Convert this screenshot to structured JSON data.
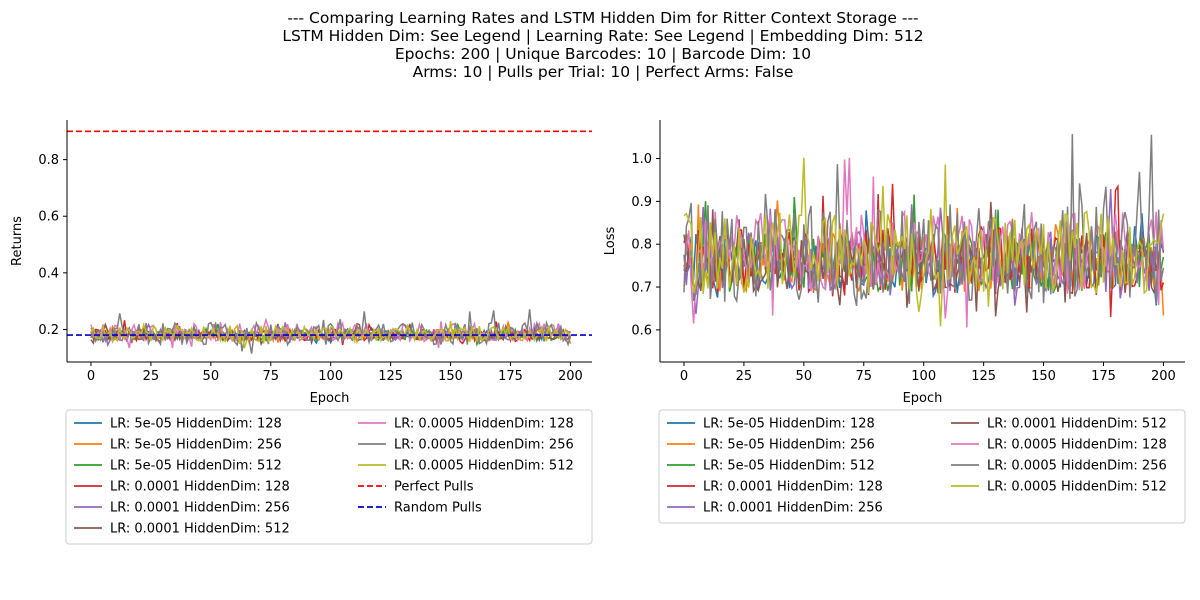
{
  "title_lines": [
    "--- Comparing Learning Rates and LSTM Hidden Dim for Ritter Context Storage ---",
    "LSTM Hidden Dim: See Legend | Learning Rate: See Legend | Embedding Dim: 512",
    "Epochs: 200 | Unique Barcodes: 10 | Barcode Dim: 10",
    "Arms: 10 | Pulls per Trial: 10 | Perfect Arms: False"
  ],
  "colors": {
    "lr5e-05_h128": "#1f77b4",
    "lr5e-05_h256": "#ff7f0e",
    "lr5e-05_h512": "#2ca02c",
    "lr0.0001_h128": "#d62728",
    "lr0.0001_h256": "#9467bd",
    "lr0.0001_h512": "#8c564b",
    "lr0.0005_h128": "#e377c2",
    "lr0.0005_h256": "#7f7f7f",
    "lr0.0005_h512": "#bcbd22",
    "perfect": "#ff0000",
    "random": "#0000cc"
  },
  "chart_data": [
    {
      "type": "line",
      "xlabel": "Epoch",
      "ylabel": "Returns",
      "xlim": [
        -10,
        209
      ],
      "ylim": [
        0.085,
        0.94
      ],
      "xticks": [
        0,
        25,
        50,
        75,
        100,
        125,
        150,
        175,
        200
      ],
      "yticks": [
        0.2,
        0.4,
        0.6,
        0.8
      ],
      "ytick_labels": [
        "0.2",
        "0.4",
        "0.6",
        "0.8"
      ],
      "legend_position": "below",
      "legend_columns": 2,
      "series": [
        {
          "name": "LR: 5e-05 HiddenDim: 128",
          "color_key": "lr5e-05_h128",
          "base": 0.18,
          "noise": 0.01,
          "seed": 11
        },
        {
          "name": "LR: 5e-05 HiddenDim: 256",
          "color_key": "lr5e-05_h256",
          "base": 0.18,
          "noise": 0.012,
          "seed": 12
        },
        {
          "name": "LR: 5e-05 HiddenDim: 512",
          "color_key": "lr5e-05_h512",
          "base": 0.18,
          "noise": 0.012,
          "seed": 13
        },
        {
          "name": "LR: 0.0001 HiddenDim: 128",
          "color_key": "lr0.0001_h128",
          "base": 0.18,
          "noise": 0.014,
          "seed": 14
        },
        {
          "name": "LR: 0.0001 HiddenDim: 256",
          "color_key": "lr0.0001_h256",
          "base": 0.18,
          "noise": 0.012,
          "seed": 15
        },
        {
          "name": "LR: 0.0001 HiddenDim: 512",
          "color_key": "lr0.0001_h512",
          "base": 0.18,
          "noise": 0.012,
          "seed": 16
        },
        {
          "name": "LR: 0.0005 HiddenDim: 128",
          "color_key": "lr0.0005_h128",
          "base": 0.19,
          "noise": 0.02,
          "seed": 17
        },
        {
          "name": "LR: 0.0005 HiddenDim: 256",
          "color_key": "lr0.0005_h256",
          "base": 0.185,
          "noise": 0.025,
          "seed": 18
        },
        {
          "name": "LR: 0.0005 HiddenDim: 512",
          "color_key": "lr0.0005_h512",
          "base": 0.185,
          "noise": 0.018,
          "seed": 19
        }
      ],
      "hlines": [
        {
          "name": "Perfect Pulls",
          "y": 0.9,
          "color_key": "perfect"
        },
        {
          "name": "Random Pulls",
          "y": 0.18,
          "color_key": "random"
        }
      ],
      "x_range": [
        0,
        200
      ]
    },
    {
      "type": "line",
      "xlabel": "Epoch",
      "ylabel": "Loss",
      "xlim": [
        -10,
        209
      ],
      "ylim": [
        0.525,
        1.09
      ],
      "xticks": [
        0,
        25,
        50,
        75,
        100,
        125,
        150,
        175,
        200
      ],
      "yticks": [
        0.6,
        0.7,
        0.8,
        0.9,
        1.0
      ],
      "ytick_labels": [
        "0.6",
        "0.7",
        "0.8",
        "0.9",
        "1.0"
      ],
      "legend_position": "below",
      "legend_columns": 2,
      "series": [
        {
          "name": "LR: 5e-05 HiddenDim: 128",
          "color_key": "lr5e-05_h128",
          "base": 0.76,
          "noise": 0.04,
          "seed": 21
        },
        {
          "name": "LR: 5e-05 HiddenDim: 256",
          "color_key": "lr5e-05_h256",
          "base": 0.76,
          "noise": 0.045,
          "seed": 22
        },
        {
          "name": "LR: 5e-05 HiddenDim: 512",
          "color_key": "lr5e-05_h512",
          "base": 0.76,
          "noise": 0.045,
          "seed": 23
        },
        {
          "name": "LR: 0.0001 HiddenDim: 128",
          "color_key": "lr0.0001_h128",
          "base": 0.76,
          "noise": 0.05,
          "seed": 24
        },
        {
          "name": "LR: 0.0001 HiddenDim: 256",
          "color_key": "lr0.0001_h256",
          "base": 0.76,
          "noise": 0.045,
          "seed": 25
        },
        {
          "name": "LR: 0.0001 HiddenDim: 512",
          "color_key": "lr0.0001_h512",
          "base": 0.76,
          "noise": 0.045,
          "seed": 26
        },
        {
          "name": "LR: 0.0005 HiddenDim: 128",
          "color_key": "lr0.0005_h128",
          "base": 0.78,
          "noise": 0.06,
          "seed": 27
        },
        {
          "name": "LR: 0.0005 HiddenDim: 256",
          "color_key": "lr0.0005_h256",
          "base": 0.78,
          "noise": 0.075,
          "seed": 28
        },
        {
          "name": "LR: 0.0005 HiddenDim: 512",
          "color_key": "lr0.0005_h512",
          "base": 0.78,
          "noise": 0.06,
          "seed": 29
        }
      ],
      "x_range": [
        0,
        200
      ]
    }
  ]
}
